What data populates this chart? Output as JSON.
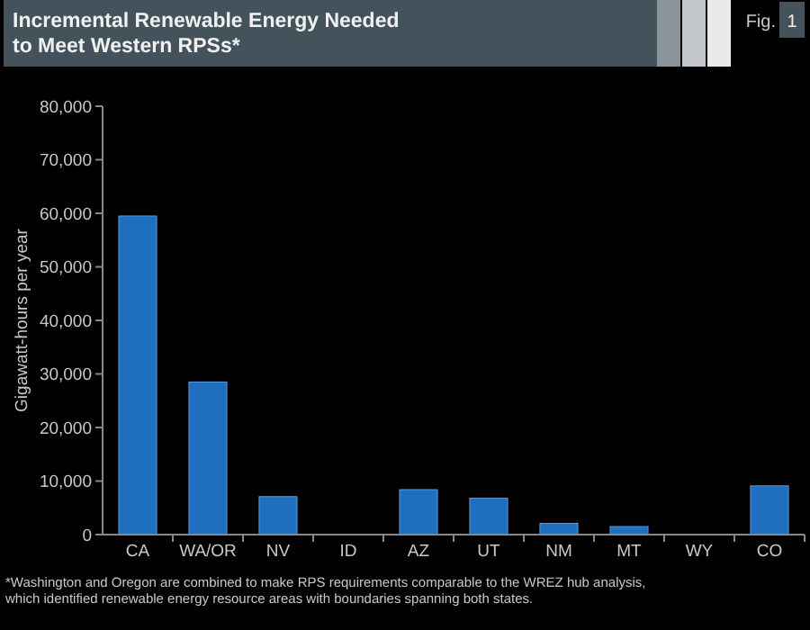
{
  "chart_data": {
    "type": "bar",
    "title": "Incremental Renewable Energy Needed to Meet Western RPSs*",
    "ylabel": "Gigawatt-hours per year",
    "annotations": [
      "Fig. 1",
      "*Washington and Oregon are combined to make RPS requirements comparable to the WREZ hub analysis, which identified renewable energy resource areas with boundaries spanning both states."
    ],
    "categories": [
      "CA",
      "WA/OR",
      "NV",
      "ID",
      "AZ",
      "UT",
      "NM",
      "MT",
      "WY",
      "CO"
    ],
    "values": [
      59500,
      28500,
      7100,
      0,
      8400,
      6800,
      2100,
      1500,
      0,
      9100
    ],
    "color": "#1f6fbf",
    "ylim": [
      0,
      80000
    ],
    "yticks": [
      {
        "value": 0,
        "label": "0"
      },
      {
        "value": 10000,
        "label": "10,000"
      },
      {
        "value": 20000,
        "label": "20,000"
      },
      {
        "value": 30000,
        "label": "30,000"
      },
      {
        "value": 40000,
        "label": "40,000"
      },
      {
        "value": 50000,
        "label": "50,000"
      },
      {
        "value": 60000,
        "label": "60,000"
      },
      {
        "value": 70000,
        "label": "70,000"
      },
      {
        "value": 80000,
        "label": "80,000"
      }
    ],
    "grid": false
  }
}
